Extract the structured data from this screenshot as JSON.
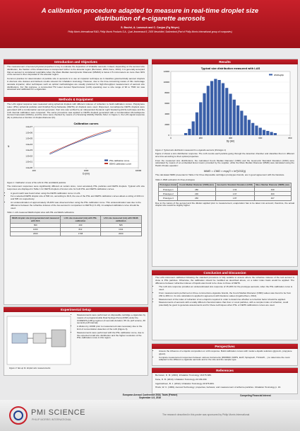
{
  "header": {
    "title": "A calibration procedure adapted to measure in real-time droplet size distribution of e-cigarette aerosols",
    "authors": "S. Bouhri, A. Lamesch and C. Canjun (Pg Weyer)",
    "affiliation": "Philip Morris International R&D, Philip Morris Products S.A., Quai Jeanrenaud 5, 2000 Neuchâtel, Switzerland (Part of Philip Morris International group of companies)"
  },
  "intro": {
    "heading": "Introduction and Objectives",
    "paragraphs": [
      "The measurement of aerosol physical properties is key to evaluate the deposition of inhalable aerosols. Indeed, depending on the aerosol size distribution, the fraction of the inhaled dose is transported further to the alveolar region (Bernstein, 2004; Kane, 2010). It is generally accepted that an aerosol is considered respirable when the Mass Median Aerodynamic Diameter (MMAD) is below 2.5 micrometers as more than 30% of the aerosol is then deposited in the alveolar region.",
      "Common practice for determination of particle size in aerosols is to use an impactor technique as it classifies gravimetrically aerosol droplets in discrete size classes and delivers results relevant for inhalation toxicology. However, due to the time-consuming nature of this multi-stage cascade impactor, other techniques such as optical methodologies are usually preferred for high-throughput measurement of aerosol size distributions. For this purpose, a commercial TSI Laser Aerosol Spectrometer (LAS) operating over a size range of 90 to 7500 nm was assessed and calibrated for e-cigarettes."
    ]
  },
  "methods": {
    "heading": "Methods & Equipment",
    "paragraph": "The LAS signal response was measured using spherical droplets with different indexes of refraction to build calibration curves. Polystyrene Latex (PSL) spherical particles and Di-Ethyl-Hexyl-Sebacate (DEHS) oil droplets were used. Dispersed, monodisperse DEHS droplets were generated with a condensation aerosol generator; their size was verified by an independent Dynamic Light Scattering (DLS) technique and the LAS internal calibration was compared. The same procedure was applied to DEHS droplets generated with a Condensation Monodisperse Aerosol Generator (CMAG), and the sizes were checked by means of a Scanning Mobility Particle Sizer. In Figure 1, the LAS signal response (N) is plotted as a function of droplet diameter (D).",
    "chart": {
      "type": "line",
      "title": "Calibration curves",
      "x_label": "D (nm)",
      "y_label": "N",
      "x": [
        200,
        300,
        500,
        800,
        1000,
        1500,
        2000,
        3000
      ],
      "series": [
        {
          "name": "PSL calibration curve",
          "color": "#1f3f8f",
          "values": [
            200,
            1000,
            8000,
            40000,
            90000,
            300000,
            700000,
            2000000
          ]
        },
        {
          "name": "DEHS calibration curve",
          "color": "#c0392b",
          "values": [
            300,
            1500,
            10000,
            60000,
            130000,
            500000,
            1100000,
            3000000
          ]
        }
      ],
      "log_x": true,
      "log_y": true,
      "xlim": [
        100,
        10000
      ],
      "xticks": [
        100,
        1000,
        10000
      ],
      "ylim": [
        1,
        10000000
      ],
      "yticks": [
        {
          "value": 1,
          "label": "1.E+00"
        },
        {
          "value": 10,
          "label": "1.E+01"
        },
        {
          "value": 100,
          "label": "1.E+02"
        },
        {
          "value": 1000,
          "label": "1.E+03"
        },
        {
          "value": 10000,
          "label": "1.E+04"
        },
        {
          "value": 100000,
          "label": "1.E+05"
        },
        {
          "value": 1000000,
          "label": "1.E+06"
        },
        {
          "value": 10000000,
          "label": "1.E+07"
        }
      ],
      "legend": "lower-right"
    },
    "figure_caption": "Figure 1: Calibration curves of the LAS for PSL and DEHS particles",
    "paragraph2": "The instrument responses were significantly different at certain sizes, most accurately PSL particles and DEHS droplets. Typical LAS size responses are displayed in Table 1 for DEHS droplets of known size for both PSL and DEHS calibration curves.",
    "bullets": [
      "A good match was found when using the DEHS calibration curve in LAS.",
      "For a selected DEHS droplet size of 500 nm, according to DLS, the use of the PSL and DEHS calibration curves allows a sizing of 430 nm and 505 nm respectively.",
      "An underestimation of approximately 15-20% was observed when using the PSL calibration curve. This underestimation was due to the difference between the refractive indexes of the two aerosol in comparison to DEHS (n=1.45). An adapted calibration curve should be used."
    ],
    "table_caption": "Table 1: LAS measured DEHS droplet sizes with PSL and DEHS calibrations",
    "table": {
      "header": [
        "DEHS droplet size (nm) generated and measured with DLS",
        "LAS size measured (nm) with PSL calibration",
        "LAS size measured (nm) with DEHS calibration"
      ],
      "rows": [
        [
          "500",
          "430",
          "505"
        ],
        [
          "1000",
          "822",
          "1011"
        ],
        [
          "2000",
          "1708",
          "2000"
        ]
      ]
    }
  },
  "setup": {
    "heading": "Experimental Setup",
    "figure_caption": "Figure 3: Set-up for droplet size measurements",
    "bullets": [
      "Measurements were performed on disposable cartridge e-cigarettes by means of a programmable Dual Syringe Pump (DSP) under the CORESTA puffing regimen (3 seconds duration, 55 mL puff volume, 30 seconds puff interval).",
      "A dilution by 10000 prior to measurement was necessary due to the limit of concentration detection of the LAS (Figure 3).",
      "Measurements were performed with the PSL calibration curve, due to the expected small size distribution and the higher resolution of the PSL calibration curve in this region."
    ]
  },
  "results": {
    "heading": "Results",
    "chart": {
      "type": "bar",
      "title": "Typical size distribution measured with LAS",
      "x_label": "Dp (nm)",
      "series": [
        {
          "name": "dN/dlogDp",
          "color": "#3a5fa8",
          "values": [
            400,
            1200,
            2600,
            4300,
            6200,
            7900,
            9300,
            10200,
            10600,
            10400,
            9800,
            8900,
            7800,
            6700,
            5600,
            4600,
            3700,
            2900,
            2300,
            1800,
            1400,
            1000,
            800,
            600,
            400
          ]
        }
      ],
      "x": [
        100,
        125,
        150,
        175,
        200,
        225,
        250,
        275,
        300,
        325,
        350,
        375,
        400,
        425,
        450,
        475,
        500,
        525,
        550,
        575,
        600,
        625,
        650,
        675,
        700
      ],
      "xlim": [
        0,
        800
      ],
      "xticks": [
        0,
        200,
        400,
        600,
        800
      ],
      "ylim": [
        0,
        12000
      ],
      "yticks": [
        0,
        2000,
        4000,
        6000,
        8000,
        10000,
        12000
      ],
      "legend": "upper-right"
    },
    "figure_caption": "Figure 2: Typical size distribution measured for e-cigarette aerosols (Prototype 1)",
    "paragraph": "Figure 2 shows a size distribution response. The LAS counts each particle going through the detection chamber and classifies them in different size bins according to their optical properties.",
    "paragraph2": "From the measured size distributions, the calculated Count Median Diameter (CMD) and the Geometric Standard Deviation (GSD) were calculated by means of an embedded Excel macro provided by the supplier, while the Mass Median Diameter (MMD) was calculated using the Hatch-Choate equation:",
    "equation": "MMD = CMD × exp(3 × ln²(GSD))",
    "paragraph3": "The calculated MMD presented in Table 2 for three disposable cartridges prototypes brands, are in good agreement with the literature.",
    "table_caption": "Table 2: MMD estimation for three prototypes",
    "table": {
      "header": [
        "Prototypes brand",
        "Count Median Diameter (CMD) (nm)",
        "Geometric Standard Deviation (GSD)",
        "Mass Median Diameter (MMD) (nm)"
      ],
      "rows": [
        [
          "Prototype 1",
          "280",
          "1.64",
          "430"
        ],
        [
          "Prototype 2",
          "230",
          "1.67",
          "400"
        ],
        [
          "Prototype 3",
          "260",
          "1.87",
          "467"
        ]
      ]
    },
    "paragraph4": "Due to the nature of the aerosol and the dilution applied prior to measurement, evaporation has to be taken into account; therefore, the actual droplet size would be slightly higher."
  },
  "conclusion": {
    "heading": "Conclusion and Discussion",
    "paragraph": "The LAS instrument calibrated following the standard procedure is fully suitable to assess where the refractive indexes of the test aerosol is close to PSL particles. Otherwise, the calibration should be modified as described above, on a wider index basis would be applied. The difference between refractive indexes of liquids was found to be close to those of DEHS.",
    "bullets": [
      "The LAS size response provides an underestimated size response of 15-20% for the prototype aerosols, when the PSL calibration curve is used.",
      "From measurements performed on three commercial e-cigarette brands, the Count Median Diameter (CMD) values was found to be from 230 to 280 nm. Its size calculation is applied in agreement with literature values (Ingebrethsen, 2012).",
      "Measurement of the index of refraction of an e-liquid is required in order to determine whether a correction factor should be applied.",
      "Measurements of aerosols with a totally different chemical nature than liver or cosol particles, with a complex index of refraction, could potentially be good to generate assessments and for these techniques when PSL or DEHS calibrations curves are used."
    ]
  },
  "perspectives": {
    "heading": "Perspectives",
    "bullets": [
      "Assess the influence of e-liquids composition on LAS response. Build calibration curves with model e-liquids solutions (glycerin, propylene glycol).",
      "Compare measurement responses between various instruments (DMS500, FMPS, ELPI, Spraytech, TSI ELPI,...) to determine the most adapted to the different e-cigarette aerosols and to the size and the sample type."
    ]
  },
  "references": {
    "heading": "References",
    "items": [
      "Bernstein, D. M. (2004). Inhalation Toxicology 16:675-689.",
      "Kane, D. B. (2010). Inhalation Toxicology 22:199-209.",
      "Ingebrethsen, B. J. (2012). Inhalation Toxicology 24:976-984.",
      "Hinds, W. C. (1999). Aerosol Technology: properties, behavior, and measurement of airborne particles. Inhalation Toxicology p. 16."
    ]
  },
  "footer": {
    "conference": "European Aerosol Conference 2016, Tours (France)",
    "date": "September 4-9, 2016",
    "competing": "Competing Financial Interest",
    "logo": "PMI SCIENCE",
    "logo_sub": "PHILIP MORRIS INTERNATIONAL",
    "disclaimer": "The research described in this poster was sponsored by Philip Morris International"
  }
}
